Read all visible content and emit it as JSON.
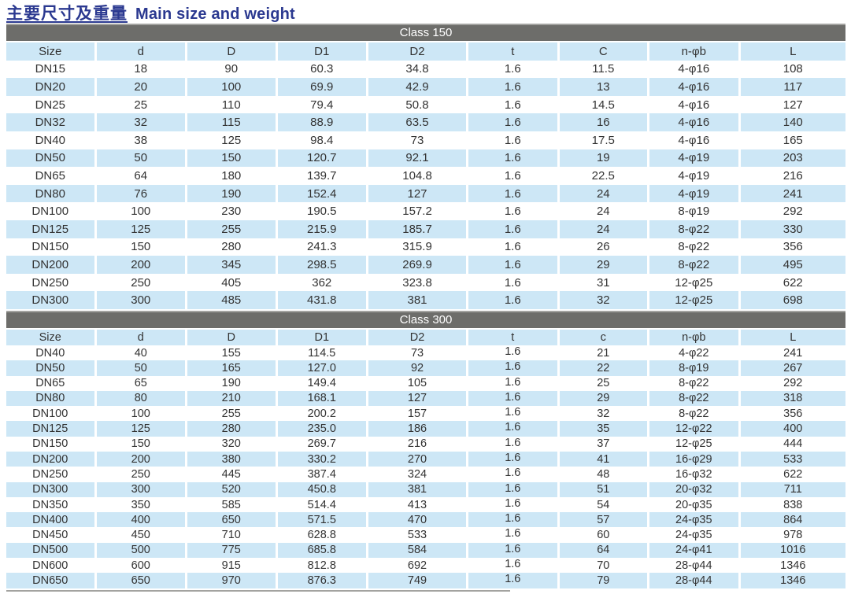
{
  "title": {
    "zh": "主要尺寸及重量",
    "en": "Main size and weight"
  },
  "colors": {
    "title_text": "#2b3990",
    "band_background": "#6d6d6a",
    "band_text": "#ffffff",
    "row_blue": "#cde7f6",
    "row_white": "#ffffff",
    "cell_text": "#333333"
  },
  "tables": [
    {
      "class_label": "Class 150",
      "columns": [
        "Size",
        "d",
        "D",
        "D1",
        "D2",
        "t",
        "C",
        "n-φb",
        "L"
      ],
      "rows": [
        [
          "DN15",
          "18",
          "90",
          "60.3",
          "34.8",
          "1.6",
          "11.5",
          "4-φ16",
          "108"
        ],
        [
          "DN20",
          "20",
          "100",
          "69.9",
          "42.9",
          "1.6",
          "13",
          "4-φ16",
          "117"
        ],
        [
          "DN25",
          "25",
          "110",
          "79.4",
          "50.8",
          "1.6",
          "14.5",
          "4-φ16",
          "127"
        ],
        [
          "DN32",
          "32",
          "115",
          "88.9",
          "63.5",
          "1.6",
          "16",
          "4-φ16",
          "140"
        ],
        [
          "DN40",
          "38",
          "125",
          "98.4",
          "73",
          "1.6",
          "17.5",
          "4-φ16",
          "165"
        ],
        [
          "DN50",
          "50",
          "150",
          "120.7",
          "92.1",
          "1.6",
          "19",
          "4-φ19",
          "203"
        ],
        [
          "DN65",
          "64",
          "180",
          "139.7",
          "104.8",
          "1.6",
          "22.5",
          "4-φ19",
          "216"
        ],
        [
          "DN80",
          "76",
          "190",
          "152.4",
          "127",
          "1.6",
          "24",
          "4-φ19",
          "241"
        ],
        [
          "DN100",
          "100",
          "230",
          "190.5",
          "157.2",
          "1.6",
          "24",
          "8-φ19",
          "292"
        ],
        [
          "DN125",
          "125",
          "255",
          "215.9",
          "185.7",
          "1.6",
          "24",
          "8-φ22",
          "330"
        ],
        [
          "DN150",
          "150",
          "280",
          "241.3",
          "315.9",
          "1.6",
          "26",
          "8-φ22",
          "356"
        ],
        [
          "DN200",
          "200",
          "345",
          "298.5",
          "269.9",
          "1.6",
          "29",
          "8-φ22",
          "495"
        ],
        [
          "DN250",
          "250",
          "405",
          "362",
          "323.8",
          "1.6",
          "31",
          "12-φ25",
          "622"
        ],
        [
          "DN300",
          "300",
          "485",
          "431.8",
          "381",
          "1.6",
          "32",
          "12-φ25",
          "698"
        ]
      ]
    },
    {
      "class_label": "Class 300",
      "columns": [
        "Size",
        "d",
        "D",
        "D1",
        "D2",
        "t",
        "c",
        "n-φb",
        "L"
      ],
      "rows": [
        [
          "DN40",
          "40",
          "155",
          "114.5",
          "73",
          "1.6",
          "21",
          "4-φ22",
          "241"
        ],
        [
          "DN50",
          "50",
          "165",
          "127.0",
          "92",
          "1.6",
          "22",
          "8-φ19",
          "267"
        ],
        [
          "DN65",
          "65",
          "190",
          "149.4",
          "105",
          "1.6",
          "25",
          "8-φ22",
          "292"
        ],
        [
          "DN80",
          "80",
          "210",
          "168.1",
          "127",
          "1.6",
          "29",
          "8-φ22",
          "318"
        ],
        [
          "DN100",
          "100",
          "255",
          "200.2",
          "157",
          "1.6",
          "32",
          "8-φ22",
          "356"
        ],
        [
          "DN125",
          "125",
          "280",
          "235.0",
          "186",
          "1.6",
          "35",
          "12-φ22",
          "400"
        ],
        [
          "DN150",
          "150",
          "320",
          "269.7",
          "216",
          "1.6",
          "37",
          "12-φ25",
          "444"
        ],
        [
          "DN200",
          "200",
          "380",
          "330.2",
          "270",
          "1.6",
          "41",
          "16-φ29",
          "533"
        ],
        [
          "DN250",
          "250",
          "445",
          "387.4",
          "324",
          "1.6",
          "48",
          "16-φ32",
          "622"
        ],
        [
          "DN300",
          "300",
          "520",
          "450.8",
          "381",
          "1.6",
          "51",
          "20-φ32",
          "711"
        ],
        [
          "DN350",
          "350",
          "585",
          "514.4",
          "413",
          "1.6",
          "54",
          "20-φ35",
          "838"
        ],
        [
          "DN400",
          "400",
          "650",
          "571.5",
          "470",
          "1.6",
          "57",
          "24-φ35",
          "864"
        ],
        [
          "DN450",
          "450",
          "710",
          "628.8",
          "533",
          "1.6",
          "60",
          "24-φ35",
          "978"
        ],
        [
          "DN500",
          "500",
          "775",
          "685.8",
          "584",
          "1.6",
          "64",
          "24-φ41",
          "1016"
        ],
        [
          "DN600",
          "600",
          "915",
          "812.8",
          "692",
          "1.6",
          "70",
          "28-φ44",
          "1346"
        ],
        [
          "DN650",
          "650",
          "970",
          "876.3",
          "749",
          "1.6",
          "79",
          "28-φ44",
          "1346"
        ]
      ]
    }
  ]
}
